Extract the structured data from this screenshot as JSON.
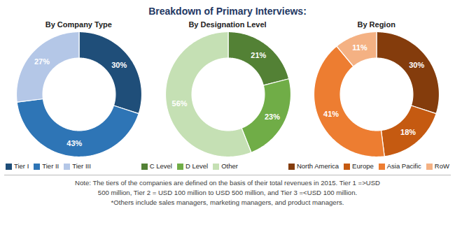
{
  "title": "Breakdown of Primary Interviews:",
  "chart_data": [
    {
      "type": "donut",
      "title": "By Company Type",
      "categories": [
        "Tier I",
        "Tier II",
        "Tier III"
      ],
      "values": [
        30,
        43,
        27
      ],
      "value_labels": [
        "30%",
        "43%",
        "27%"
      ],
      "colors": [
        "#1F4E79",
        "#2E75B6",
        "#B4C7E7"
      ],
      "data_labels": true,
      "legend": "bottom"
    },
    {
      "type": "donut",
      "title": "By Designation Level",
      "categories": [
        "C Level",
        "D Level",
        "Other"
      ],
      "values": [
        21,
        23,
        56
      ],
      "value_labels": [
        "21%",
        "23%",
        "56%"
      ],
      "colors": [
        "#538135",
        "#70AD47",
        "#C5E0B4"
      ],
      "data_labels": true,
      "legend": "bottom"
    },
    {
      "type": "donut",
      "title": "By Region",
      "categories": [
        "North America",
        "Europe",
        "Asia Pacific",
        "RoW"
      ],
      "values": [
        30,
        18,
        41,
        11
      ],
      "value_labels": [
        "30%",
        "18%",
        "41%",
        "11%"
      ],
      "colors": [
        "#843C0C",
        "#C55A11",
        "#ED7D31",
        "#F4B183"
      ],
      "data_labels": true,
      "legend": "bottom"
    }
  ],
  "annotations": [
    "Note: The tiers of the companies are defined on the basis of their total revenues in 2015. Tier 1 =>USD",
    "500 million, Tier 2 = USD 100 million to USD 500 million, and Tier 3 =<USD 100 million.",
    "*Others include sales managers, marketing managers, and product managers."
  ]
}
